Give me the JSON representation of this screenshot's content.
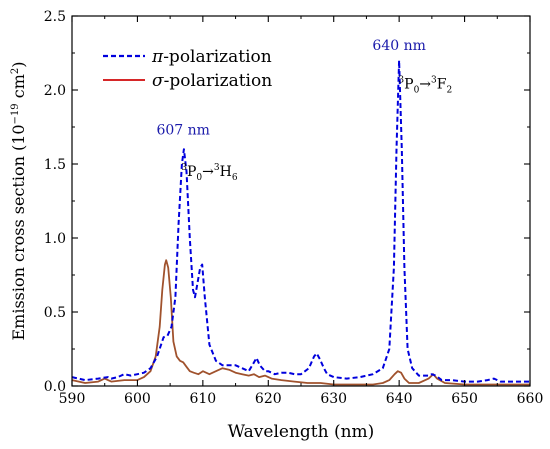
{
  "chart_data": {
    "type": "line",
    "xlabel": "Wavelength (nm)",
    "ylabel": {
      "main": "Emission cross section (10",
      "exp1": "−19",
      "mid": " cm",
      "exp2": "2",
      "end": ")"
    },
    "xlim": [
      590,
      660
    ],
    "ylim": [
      0,
      2.5
    ],
    "x_ticks": [
      590,
      600,
      610,
      620,
      630,
      640,
      650,
      660
    ],
    "y_ticks": [
      0.0,
      0.5,
      1.0,
      1.5,
      2.0,
      2.5
    ],
    "x_tick_labels": [
      "590",
      "600",
      "610",
      "620",
      "630",
      "640",
      "650",
      "660"
    ],
    "y_tick_labels": [
      "0.0",
      "0.5",
      "1.0",
      "1.5",
      "2.0",
      "2.5"
    ],
    "legend_position": "top-left",
    "colors": {
      "pi": "#0000dd",
      "sigma": "#a0522d",
      "sigma_legend": "#d62728",
      "peak_label": "#1a1aaa",
      "axis": "#000000"
    },
    "series": [
      {
        "name": "π-polarization",
        "name_symbol": "π",
        "name_rest": "-polarization",
        "style": "dashed",
        "points": [
          [
            590,
            0.06
          ],
          [
            592,
            0.04
          ],
          [
            594,
            0.05
          ],
          [
            595.5,
            0.06
          ],
          [
            596,
            0.05
          ],
          [
            597,
            0.06
          ],
          [
            598,
            0.08
          ],
          [
            599,
            0.07
          ],
          [
            600,
            0.08
          ],
          [
            601,
            0.09
          ],
          [
            602,
            0.12
          ],
          [
            603,
            0.2
          ],
          [
            604,
            0.33
          ],
          [
            604.6,
            0.34
          ],
          [
            605.2,
            0.4
          ],
          [
            605.8,
            0.6
          ],
          [
            606.3,
            1.1
          ],
          [
            606.8,
            1.5
          ],
          [
            607.1,
            1.6
          ],
          [
            607.5,
            1.45
          ],
          [
            608,
            1.0
          ],
          [
            608.5,
            0.65
          ],
          [
            608.8,
            0.6
          ],
          [
            609.2,
            0.7
          ],
          [
            609.6,
            0.8
          ],
          [
            609.9,
            0.82
          ],
          [
            610.3,
            0.6
          ],
          [
            611,
            0.28
          ],
          [
            612,
            0.17
          ],
          [
            613,
            0.14
          ],
          [
            614,
            0.14
          ],
          [
            615,
            0.14
          ],
          [
            616,
            0.12
          ],
          [
            617,
            0.1
          ],
          [
            617.7,
            0.15
          ],
          [
            618.2,
            0.19
          ],
          [
            618.7,
            0.14
          ],
          [
            619.5,
            0.1
          ],
          [
            620,
            0.1
          ],
          [
            621,
            0.08
          ],
          [
            622,
            0.09
          ],
          [
            623,
            0.09
          ],
          [
            624,
            0.08
          ],
          [
            625,
            0.08
          ],
          [
            626.2,
            0.12
          ],
          [
            627,
            0.2
          ],
          [
            627.4,
            0.22
          ],
          [
            627.9,
            0.18
          ],
          [
            628.5,
            0.12
          ],
          [
            629,
            0.08
          ],
          [
            630,
            0.06
          ],
          [
            632,
            0.05
          ],
          [
            634,
            0.06
          ],
          [
            636,
            0.08
          ],
          [
            637.5,
            0.12
          ],
          [
            638.5,
            0.25
          ],
          [
            639.2,
            0.8
          ],
          [
            639.6,
            1.6
          ],
          [
            640,
            2.2
          ],
          [
            640.4,
            1.6
          ],
          [
            640.8,
            0.8
          ],
          [
            641.3,
            0.25
          ],
          [
            642,
            0.12
          ],
          [
            643,
            0.07
          ],
          [
            644.5,
            0.07
          ],
          [
            645,
            0.08
          ],
          [
            645.6,
            0.07
          ],
          [
            646.5,
            0.04
          ],
          [
            648,
            0.04
          ],
          [
            650,
            0.03
          ],
          [
            652,
            0.03
          ],
          [
            653.5,
            0.04
          ],
          [
            654.5,
            0.05
          ],
          [
            655.5,
            0.03
          ],
          [
            657,
            0.03
          ],
          [
            660,
            0.03
          ]
        ]
      },
      {
        "name": "σ-polarization",
        "name_symbol": "σ",
        "name_rest": "-polarization",
        "style": "solid",
        "points": [
          [
            590,
            0.04
          ],
          [
            592,
            0.02
          ],
          [
            594,
            0.03
          ],
          [
            595,
            0.05
          ],
          [
            596,
            0.03
          ],
          [
            598,
            0.04
          ],
          [
            600,
            0.04
          ],
          [
            601,
            0.06
          ],
          [
            602,
            0.1
          ],
          [
            602.8,
            0.2
          ],
          [
            603.4,
            0.4
          ],
          [
            603.8,
            0.65
          ],
          [
            604.2,
            0.82
          ],
          [
            604.4,
            0.85
          ],
          [
            604.7,
            0.8
          ],
          [
            605.1,
            0.6
          ],
          [
            605.5,
            0.3
          ],
          [
            606,
            0.2
          ],
          [
            606.5,
            0.17
          ],
          [
            607,
            0.16
          ],
          [
            607.5,
            0.13
          ],
          [
            608,
            0.1
          ],
          [
            608.6,
            0.09
          ],
          [
            609.3,
            0.08
          ],
          [
            610,
            0.1
          ],
          [
            611,
            0.08
          ],
          [
            612,
            0.1
          ],
          [
            613,
            0.12
          ],
          [
            614,
            0.11
          ],
          [
            615,
            0.09
          ],
          [
            616,
            0.08
          ],
          [
            617,
            0.07
          ],
          [
            617.8,
            0.08
          ],
          [
            618.6,
            0.06
          ],
          [
            619.5,
            0.07
          ],
          [
            620.5,
            0.05
          ],
          [
            622,
            0.04
          ],
          [
            624,
            0.03
          ],
          [
            626,
            0.02
          ],
          [
            628,
            0.02
          ],
          [
            630,
            0.01
          ],
          [
            632,
            0.01
          ],
          [
            634,
            0.01
          ],
          [
            636,
            0.01
          ],
          [
            637.5,
            0.02
          ],
          [
            638.5,
            0.04
          ],
          [
            639.3,
            0.08
          ],
          [
            639.8,
            0.1
          ],
          [
            640.3,
            0.09
          ],
          [
            640.8,
            0.05
          ],
          [
            641.5,
            0.02
          ],
          [
            643,
            0.02
          ],
          [
            644.5,
            0.05
          ],
          [
            645.2,
            0.08
          ],
          [
            645.8,
            0.05
          ],
          [
            647,
            0.02
          ],
          [
            650,
            0.01
          ],
          [
            655,
            0.01
          ],
          [
            660,
            0.01
          ]
        ]
      }
    ],
    "annotations": [
      {
        "text": "607 nm",
        "x": 607,
        "y": 1.7,
        "kind": "peak"
      },
      {
        "text": "640 nm",
        "x": 640,
        "y": 2.27,
        "kind": "peak"
      }
    ],
    "transitions": [
      {
        "lower": "P",
        "lower_mult": "3",
        "lower_j": "0",
        "arrow": "→",
        "upper": "H",
        "upper_mult": "3",
        "upper_j": "6",
        "x": 611,
        "y": 1.42
      },
      {
        "lower": "P",
        "lower_mult": "3",
        "lower_j": "0",
        "arrow": "→",
        "upper": "F",
        "upper_mult": "3",
        "upper_j": "2",
        "x": 644,
        "y": 2.01
      }
    ]
  }
}
